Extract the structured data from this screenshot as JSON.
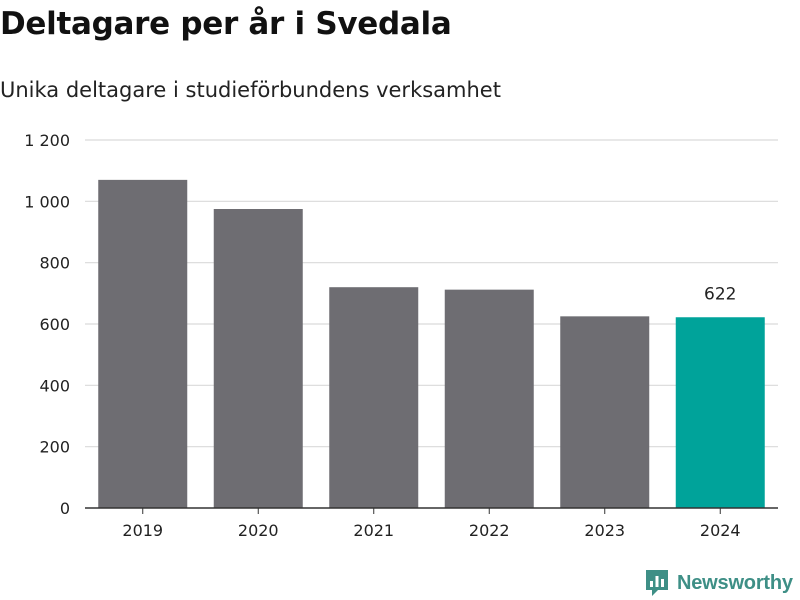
{
  "title": "Deltagare per år i Svedala",
  "subtitle": "Unika deltagare i studieförbundens verksamhet",
  "brand": {
    "name": "Newsworthy",
    "icon": "bar-chart-chat-icon",
    "color": "#3e8f86"
  },
  "chart_data": {
    "type": "bar",
    "categories": [
      "2019",
      "2020",
      "2021",
      "2022",
      "2023",
      "2024"
    ],
    "values": [
      1070,
      975,
      720,
      712,
      625,
      622
    ],
    "ylim": [
      0,
      1200
    ],
    "yticks": [
      0,
      200,
      400,
      600,
      800,
      1000,
      1200
    ],
    "ytick_labels": [
      "0",
      "200",
      "400",
      "600",
      "800",
      "1 000",
      "1 200"
    ],
    "highlight_index": 5,
    "highlight_label": "622",
    "colors": {
      "bar": "#6e6d72",
      "highlight": "#00a39a",
      "grid": "#d9d9d9",
      "axis": "#333333"
    },
    "grid": true,
    "legend": "none"
  }
}
